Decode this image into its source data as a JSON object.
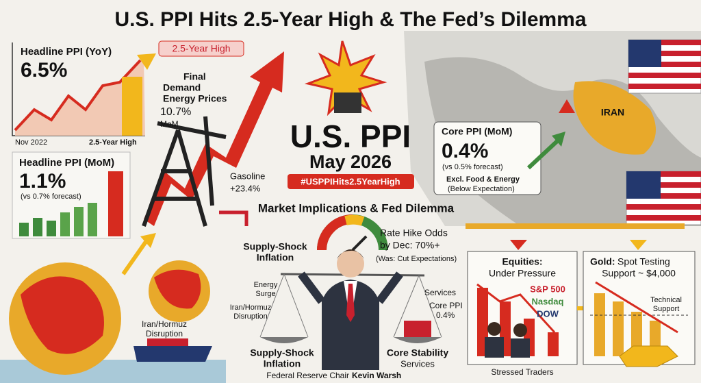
{
  "title": "U.S. PPI Hits 2.5-Year High & The Fed’s Dilemma",
  "headline_yoy": {
    "label": "Headline PPI (YoY)",
    "value": "6.5%",
    "badge": "2.5-Year High",
    "axis_start": "Nov 2022",
    "axis_end": "2.5-Year High"
  },
  "energy": {
    "label_lines": [
      "Final",
      "Demand",
      "Energy Prices"
    ],
    "value": "10.7%",
    "unit": "MoM"
  },
  "headline_mom": {
    "label": "Headline PPI (MoM)",
    "value": "1.1%",
    "note": "(vs 0.7% forecast)"
  },
  "gasoline": {
    "label": "Gasoline",
    "value": "+23.4%"
  },
  "center": {
    "title": "U.S. PPI",
    "date": "May 2026",
    "hashtag": "#USPPIHits2.5YearHigh"
  },
  "core": {
    "label": "Core PPI (MoM)",
    "value": "0.4%",
    "note": "(vs 0.5% forecast)",
    "excl": "Excl. Food & Energy",
    "expectation": "(Below Expectation)"
  },
  "map": {
    "country": "IRAN"
  },
  "section_title": "Market Implications & Fed Dilemma",
  "gauge": {
    "lines": [
      "Rate Hike Odds",
      "by Dec: 70%+"
    ],
    "note": "(Was: Cut Expectations)"
  },
  "scale": {
    "top_left_lines": [
      "Supply-Shock",
      "Inflation"
    ],
    "left_pan": {
      "item1_lines": [
        "Energy",
        "Surge"
      ],
      "item2_lines": [
        "Iran/Hormuz",
        "Disruption"
      ]
    },
    "right_pan": {
      "item1": "Services",
      "item2_lines": [
        "Core PPI",
        "0.4%"
      ]
    },
    "bottom_left_lines": [
      "Supply-Shock",
      "Inflation"
    ],
    "bottom_right_lines": [
      "Core Stability",
      "Services"
    ],
    "caption_prefix": "Federal Reserve Chair",
    "caption_name": "Kevin Warsh"
  },
  "ship_label_lines": [
    "Iran/Hormuz",
    "Disruption"
  ],
  "equities": {
    "title_lines": [
      "Equities:",
      "Under Pressure"
    ],
    "indices": [
      "S&P 500",
      "Nasdaq",
      "DOW"
    ],
    "caption": "Stressed Traders"
  },
  "gold": {
    "title_prefix": "Gold:",
    "title_rest": " Spot Testing",
    "title_line2": "Support ~ $4,000",
    "support_lines": [
      "Technical",
      "Support"
    ]
  }
}
